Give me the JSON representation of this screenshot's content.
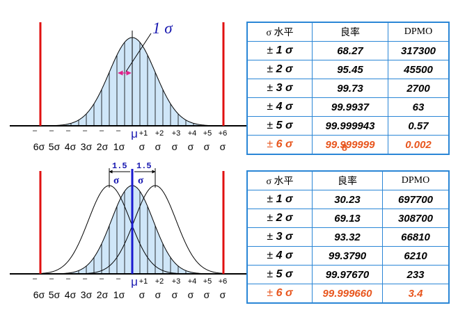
{
  "top_chart": {
    "sigma_callout": "1 σ",
    "mu_label": "μ",
    "tick_top_left": [
      "–",
      "–",
      "–",
      "–",
      "–",
      "–"
    ],
    "tick_top_right": [
      "+1",
      "+2",
      "+3",
      "+4",
      "+5",
      "+6"
    ],
    "tick_bottom": [
      "6σ",
      "5σ",
      "4σ",
      "3σ",
      "2σ",
      "1σ",
      "σ",
      "σ",
      "σ",
      "σ",
      "σ",
      "σ"
    ]
  },
  "bottom_chart": {
    "shift_left_value": "1.5",
    "shift_left_unit": "σ",
    "shift_right_value": "1.5",
    "shift_right_unit": "σ",
    "mu_label": "μ",
    "tick_top_left": [
      "–",
      "–",
      "–",
      "–",
      "–",
      "–"
    ],
    "tick_top_right": [
      "+1",
      "+2",
      "+3",
      "+4",
      "+5",
      "+6"
    ],
    "tick_bottom": [
      "6σ",
      "5σ",
      "4σ",
      "3σ",
      "2σ",
      "1σ",
      "σ",
      "σ",
      "σ",
      "σ",
      "σ",
      "σ"
    ]
  },
  "table1": {
    "headers": [
      "σ  水平",
      "良率",
      "DPMO"
    ],
    "rows": [
      {
        "level": "± ",
        "n": "1 σ",
        "yield": "68.27",
        "dpmo": "317300"
      },
      {
        "level": "± ",
        "n": "2 σ",
        "yield": "95.45",
        "dpmo": "45500"
      },
      {
        "level": "± ",
        "n": "3 σ",
        "yield": "99.73",
        "dpmo": "2700"
      },
      {
        "level": "± ",
        "n": "4 σ",
        "yield": "99.9937",
        "dpmo": "63"
      },
      {
        "level": "± ",
        "n": "5 σ",
        "yield": "99.999943",
        "dpmo": "0.57"
      },
      {
        "level": "± ",
        "n": "6 σ",
        "yield": "99.999999",
        "dpmo": "0.002"
      }
    ],
    "overflow_digit": "8"
  },
  "table2": {
    "headers": [
      "σ 水平",
      "良率",
      "DPMO"
    ],
    "rows": [
      {
        "level": "± ",
        "n": "1 σ",
        "yield": "30.23",
        "dpmo": "697700"
      },
      {
        "level": "± ",
        "n": "2 σ",
        "yield": "69.13",
        "dpmo": "308700"
      },
      {
        "level": "± ",
        "n": "3 σ",
        "yield": "93.32",
        "dpmo": "66810"
      },
      {
        "level": "± ",
        "n": "4 σ",
        "yield": "99.3790",
        "dpmo": "6210"
      },
      {
        "level": "± ",
        "n": "5 σ",
        "yield": "99.97670",
        "dpmo": "233"
      },
      {
        "level": "± ",
        "n": "6 σ",
        "yield": "99.999660",
        "dpmo": "3.4"
      }
    ]
  },
  "colors": {
    "spec_line": "#e01010",
    "fill": "#cfe6f8",
    "border": "#2a86d6",
    "highlight": "#e8561e",
    "mean_line": "#1a1ad0",
    "label": "#1818b0"
  }
}
